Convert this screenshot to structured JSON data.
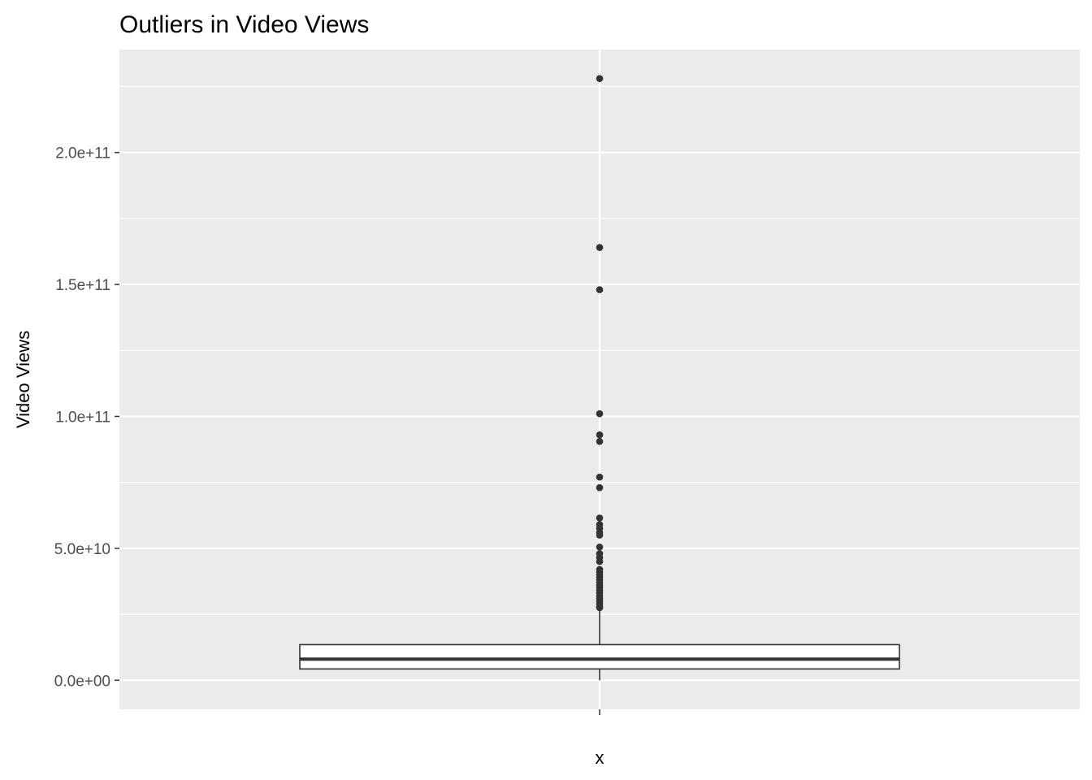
{
  "chart_data": {
    "type": "boxplot",
    "title": "Outliers in Video Views",
    "xlabel": "",
    "ylabel": "Video Views",
    "categories": [
      "x"
    ],
    "ylim": [
      -11000000000,
      239000000000
    ],
    "yticks": [
      0,
      50000000000,
      100000000000,
      150000000000,
      200000000000
    ],
    "ytick_labels": [
      "0.0e+00",
      "5.0e+10",
      "1.0e+11",
      "1.5e+11",
      "2.0e+11"
    ],
    "grid": true,
    "box": {
      "category": "x",
      "whisker_low": 0,
      "q1": 4300000000,
      "median": 8000000000,
      "q3": 13500000000,
      "whisker_high": 27000000000
    },
    "outliers": [
      228000000000,
      164000000000,
      148000000000,
      101000000000,
      93000000000,
      90500000000,
      77000000000,
      73000000000,
      61500000000,
      59000000000,
      57500000000,
      56000000000,
      55000000000,
      50500000000,
      48000000000,
      46500000000,
      45000000000,
      42000000000,
      41000000000,
      40000000000,
      39000000000,
      38000000000,
      37000000000,
      36000000000,
      35000000000,
      34000000000,
      33000000000,
      32000000000,
      31000000000,
      30000000000,
      29000000000,
      28000000000,
      27500000000
    ],
    "colors": {
      "panel": "#ebebeb",
      "grid": "#ffffff",
      "mark": "#333333",
      "tick_label": "#4d4d4d"
    }
  }
}
